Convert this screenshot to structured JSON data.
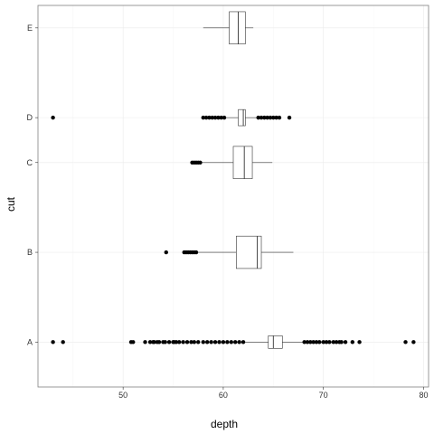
{
  "chart_data": {
    "type": "boxplot",
    "title": "",
    "xlabel": "depth",
    "ylabel": "cut",
    "xlim": [
      41.5,
      80.5
    ],
    "x_ticks": [
      50,
      60,
      70,
      80
    ],
    "grid": true,
    "categories": [
      {
        "name": "A",
        "pos": 1.0,
        "width": 0.14,
        "whisker_low": 62.2,
        "q1": 64.5,
        "median": 65.0,
        "q3": 65.9,
        "whisker_high": 68.1,
        "outliers": [
          43.0,
          44.0,
          50.8,
          51.0,
          52.2,
          52.7,
          53.0,
          53.1,
          53.4,
          53.6,
          54.0,
          54.2,
          54.6,
          55.0,
          55.1,
          55.3,
          55.6,
          56.0,
          56.4,
          56.8,
          57.1,
          57.5,
          58.0,
          58.4,
          58.8,
          59.2,
          59.6,
          60.0,
          60.4,
          60.8,
          61.2,
          61.6,
          62.0,
          68.1,
          68.4,
          68.7,
          69.0,
          69.3,
          69.6,
          70.0,
          70.3,
          70.6,
          71.0,
          71.3,
          71.6,
          71.8,
          72.2,
          72.9,
          73.6,
          78.2,
          79.0
        ]
      },
      {
        "name": "B",
        "pos": 2.0,
        "width": 0.36,
        "whisker_low": 57.5,
        "q1": 61.3,
        "median": 63.4,
        "q3": 63.8,
        "whisker_high": 67.0,
        "outliers": [
          54.3,
          56.1,
          56.3,
          56.5,
          56.7,
          56.9,
          57.1,
          57.3
        ]
      },
      {
        "name": "C",
        "pos": 3.0,
        "width": 0.36,
        "whisker_low": 57.8,
        "q1": 61.0,
        "median": 62.1,
        "q3": 62.9,
        "whisker_high": 64.9,
        "outliers": [
          56.9,
          57.1,
          57.3,
          57.5,
          57.7
        ]
      },
      {
        "name": "D",
        "pos": 3.5,
        "width": 0.18,
        "whisker_low": 60.3,
        "q1": 61.5,
        "median": 62.0,
        "q3": 62.2,
        "whisker_high": 63.3,
        "outliers": [
          43.0,
          58.0,
          58.3,
          58.6,
          58.9,
          59.2,
          59.5,
          59.8,
          60.1,
          63.5,
          63.8,
          64.1,
          64.4,
          64.7,
          65.0,
          65.3,
          65.6,
          66.6
        ]
      },
      {
        "name": "E",
        "pos": 4.5,
        "width": 0.36,
        "whisker_low": 58.0,
        "q1": 60.6,
        "median": 61.5,
        "q3": 62.2,
        "whisker_high": 63.0,
        "outliers": []
      }
    ],
    "ylim": [
      0.5,
      4.75
    ]
  }
}
